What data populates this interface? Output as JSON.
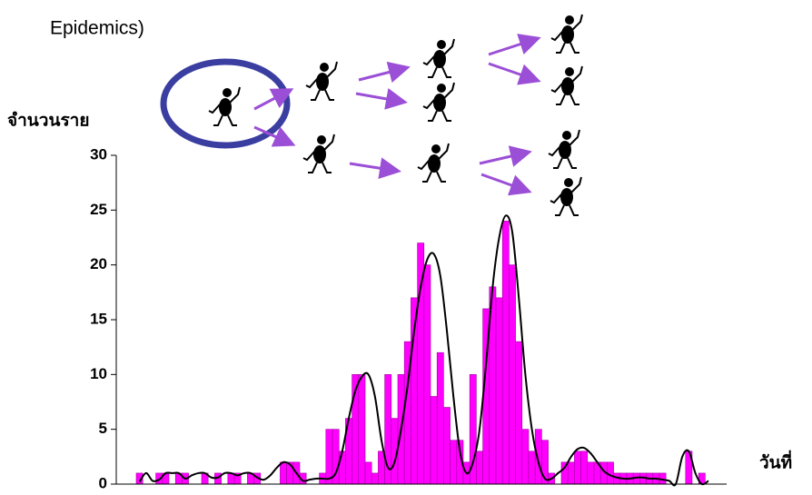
{
  "header": {
    "title": "Epidemics)"
  },
  "chart_data": {
    "type": "bar",
    "ylabel": "จำนวนราย",
    "xlabel": "วันที่",
    "color": "#ff00ff",
    "values": [
      1,
      0,
      0,
      1,
      1,
      0,
      1,
      1,
      0,
      0,
      1,
      0,
      1,
      0,
      1,
      1,
      0,
      1,
      1,
      0,
      0,
      0,
      2,
      2,
      2,
      1,
      0,
      0,
      1,
      5,
      5,
      3,
      6,
      10,
      10,
      2,
      1,
      3,
      10,
      6,
      10,
      13,
      17,
      22,
      20,
      8,
      12,
      7,
      4,
      4,
      2,
      10,
      3,
      16,
      18,
      17,
      24,
      20,
      13,
      5,
      3,
      5,
      4,
      1,
      0,
      2,
      2,
      3,
      3,
      2,
      2,
      2,
      2,
      1,
      1,
      1,
      1,
      1,
      1,
      1,
      1,
      0,
      0,
      0,
      3,
      0,
      1,
      0
    ],
    "curve_values": [
      0.2,
      1,
      0.3,
      0.4,
      1,
      1,
      1,
      0.5,
      0.8,
      1,
      1,
      0.6,
      0.6,
      1,
      1,
      0.8,
      1,
      1,
      0.6,
      0.4,
      0.8,
      1.5,
      2,
      1.8,
      1,
      0.3,
      0.4,
      0.5,
      0.5,
      0.5,
      1,
      3,
      6,
      8.5,
      9.8,
      10,
      8,
      4,
      1.5,
      2,
      5,
      9,
      14,
      18,
      20.5,
      21,
      19,
      14,
      8,
      3,
      1,
      2,
      5,
      11,
      18,
      22.5,
      24.5,
      23,
      17,
      10,
      5,
      2,
      0.5,
      0.5,
      1,
      1.5,
      2.5,
      3.2,
      3.3,
      2.8,
      2,
      1.2,
      0.8,
      0.6,
      0.5,
      0.5,
      0.6,
      0.6,
      0.5,
      0.5,
      0.4,
      0.3,
      0,
      2.5,
      3,
      1,
      0,
      0.3
    ],
    "curve_color": "#000000",
    "ylim": [
      0,
      30
    ],
    "yticks": [
      0,
      5,
      10,
      15,
      20,
      25,
      30
    ]
  }
}
